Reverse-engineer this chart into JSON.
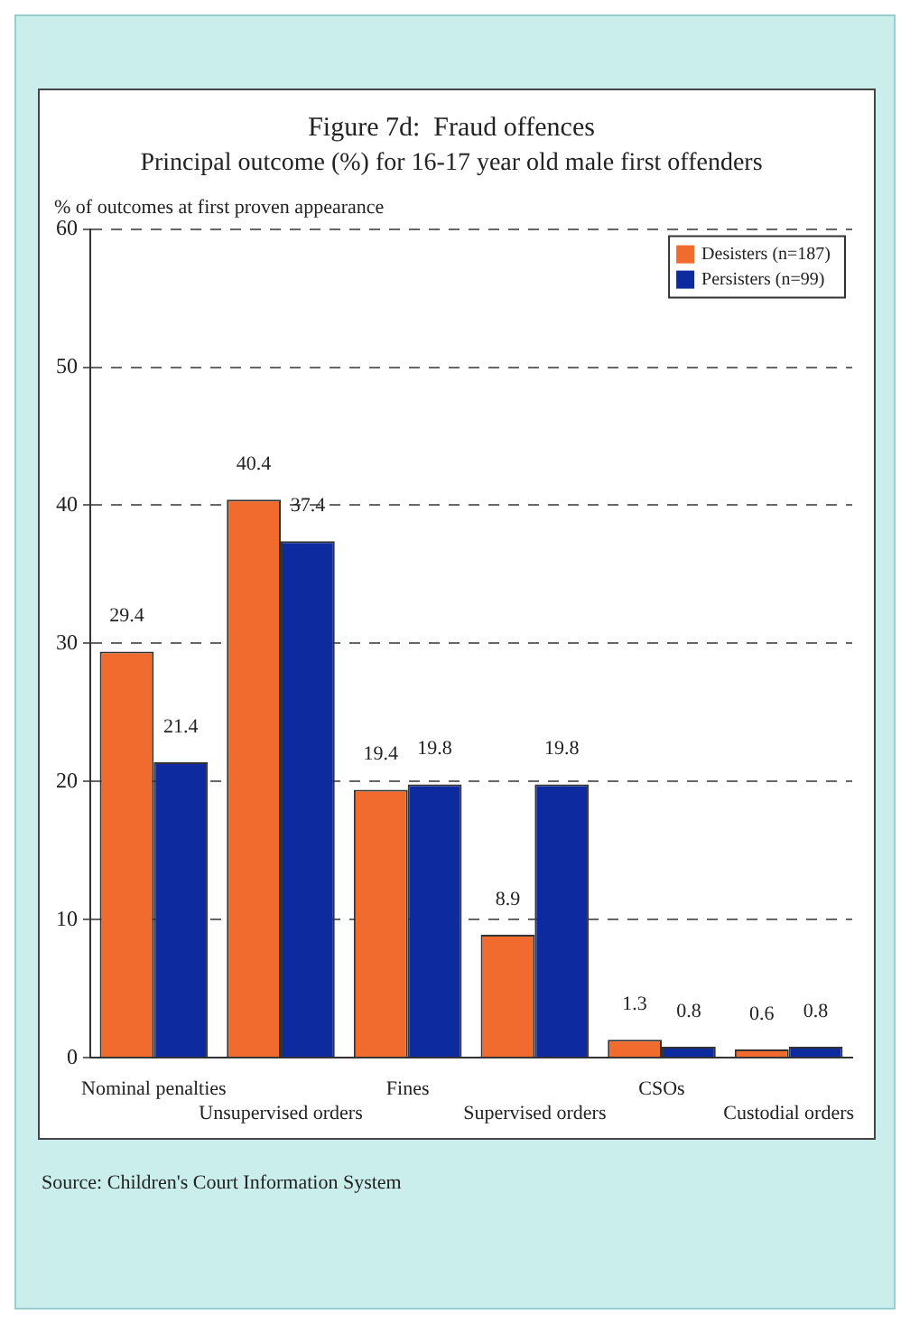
{
  "chart_data": {
    "type": "bar",
    "title": "Figure 7d:  Fraud offences",
    "subtitle": "Principal outcome (%) for 16-17 year old male first offenders",
    "ylabel": "% of outcomes at first proven appearance",
    "annotations": [
      "Source:  Children's Court Information System"
    ],
    "categories": [
      "Nominal penalties",
      "Unsupervised orders",
      "Fines",
      "Supervised orders",
      "CSOs",
      "Custodial orders"
    ],
    "series": [
      {
        "name": "Desisters (n=187)",
        "color": "#f26b2e",
        "values": [
          29.4,
          40.4,
          19.4,
          8.9,
          1.3,
          0.6
        ]
      },
      {
        "name": "Persisters (n=99)",
        "color": "#0d2a9e",
        "values": [
          21.4,
          37.4,
          19.8,
          19.8,
          0.8,
          0.8
        ]
      }
    ],
    "ylim": [
      0,
      60
    ],
    "yticks": [
      0,
      10,
      20,
      30,
      40,
      50,
      60
    ],
    "grid": "y",
    "legend": "top right",
    "data_labels": true
  }
}
